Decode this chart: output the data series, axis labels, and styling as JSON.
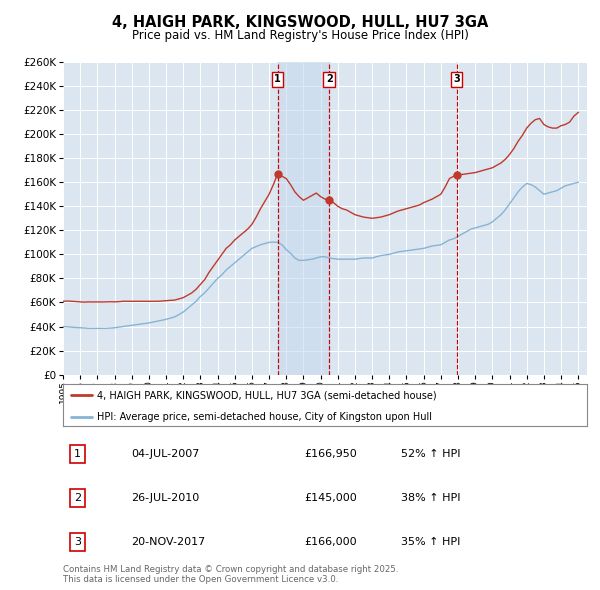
{
  "title": "4, HAIGH PARK, KINGSWOOD, HULL, HU7 3GA",
  "subtitle": "Price paid vs. HM Land Registry's House Price Index (HPI)",
  "title_fontsize": 10.5,
  "subtitle_fontsize": 8.5,
  "background_color": "#ffffff",
  "plot_bg_color": "#dce6f1",
  "shaded_color": "#c5d8ec",
  "grid_color": "#ffffff",
  "red_color": "#c0392b",
  "blue_color": "#85b4d4",
  "dashed_color": "#cc0000",
  "ylim": [
    0,
    260000
  ],
  "yticks": [
    0,
    20000,
    40000,
    60000,
    80000,
    100000,
    120000,
    140000,
    160000,
    180000,
    200000,
    220000,
    240000,
    260000
  ],
  "xlim_start": 1995.0,
  "xlim_end": 2025.5,
  "transactions": [
    {
      "num": 1,
      "date": "04-JUL-2007",
      "price": 166950,
      "pct": "52%",
      "x_year": 2007.5
    },
    {
      "num": 2,
      "date": "26-JUL-2010",
      "price": 145000,
      "pct": "38%",
      "x_year": 2010.5
    },
    {
      "num": 3,
      "date": "20-NOV-2017",
      "price": 166000,
      "pct": "35%",
      "x_year": 2017.917
    }
  ],
  "legend_red_label": "4, HAIGH PARK, KINGSWOOD, HULL, HU7 3GA (semi-detached house)",
  "legend_blue_label": "HPI: Average price, semi-detached house, City of Kingston upon Hull",
  "footer_text": "Contains HM Land Registry data © Crown copyright and database right 2025.\nThis data is licensed under the Open Government Licence v3.0.",
  "red_series": {
    "x": [
      1995.0,
      1995.25,
      1995.5,
      1995.75,
      1996.0,
      1996.25,
      1996.5,
      1996.75,
      1997.0,
      1997.25,
      1997.5,
      1997.75,
      1998.0,
      1998.25,
      1998.5,
      1998.75,
      1999.0,
      1999.25,
      1999.5,
      1999.75,
      2000.0,
      2000.25,
      2000.5,
      2000.75,
      2001.0,
      2001.25,
      2001.5,
      2001.75,
      2002.0,
      2002.25,
      2002.5,
      2002.75,
      2003.0,
      2003.25,
      2003.5,
      2003.75,
      2004.0,
      2004.25,
      2004.5,
      2004.75,
      2005.0,
      2005.25,
      2005.5,
      2005.75,
      2006.0,
      2006.25,
      2006.5,
      2006.75,
      2007.0,
      2007.25,
      2007.5,
      2007.75,
      2008.0,
      2008.25,
      2008.5,
      2008.75,
      2009.0,
      2009.25,
      2009.5,
      2009.75,
      2010.0,
      2010.25,
      2010.5,
      2010.75,
      2011.0,
      2011.25,
      2011.5,
      2011.75,
      2012.0,
      2012.25,
      2012.5,
      2012.75,
      2013.0,
      2013.25,
      2013.5,
      2013.75,
      2014.0,
      2014.25,
      2014.5,
      2014.75,
      2015.0,
      2015.25,
      2015.5,
      2015.75,
      2016.0,
      2016.25,
      2016.5,
      2016.75,
      2017.0,
      2017.25,
      2017.5,
      2017.75,
      2018.0,
      2018.25,
      2018.5,
      2018.75,
      2019.0,
      2019.25,
      2019.5,
      2019.75,
      2020.0,
      2020.25,
      2020.5,
      2020.75,
      2021.0,
      2021.25,
      2021.5,
      2021.75,
      2022.0,
      2022.25,
      2022.5,
      2022.75,
      2023.0,
      2023.25,
      2023.5,
      2023.75,
      2024.0,
      2024.25,
      2024.5,
      2024.75,
      2025.0
    ],
    "y": [
      61000,
      61200,
      61000,
      60800,
      60500,
      60300,
      60500,
      60400,
      60500,
      60400,
      60500,
      60600,
      60500,
      60700,
      61000,
      61000,
      61000,
      61000,
      61000,
      61000,
      61000,
      61000,
      61000,
      61200,
      61500,
      61800,
      62000,
      63000,
      64000,
      66000,
      68000,
      71000,
      75000,
      79000,
      85000,
      90000,
      95000,
      100000,
      105000,
      108000,
      112000,
      115000,
      118000,
      121000,
      125000,
      131000,
      138000,
      144000,
      150000,
      158000,
      166950,
      165000,
      163000,
      158000,
      152000,
      148000,
      145000,
      147000,
      149000,
      151000,
      148000,
      146000,
      145000,
      143000,
      140000,
      138000,
      137000,
      135000,
      133000,
      132000,
      131000,
      130500,
      130000,
      130500,
      131000,
      132000,
      133000,
      134500,
      136000,
      137000,
      138000,
      139000,
      140000,
      141000,
      143000,
      144500,
      146000,
      148000,
      150000,
      156000,
      163000,
      165000,
      166000,
      166500,
      167000,
      167500,
      168000,
      169000,
      170000,
      171000,
      172000,
      174000,
      176000,
      179000,
      183000,
      188000,
      194000,
      199000,
      205000,
      209000,
      212000,
      213000,
      208000,
      206000,
      205000,
      205000,
      207000,
      208000,
      210000,
      215000,
      218000
    ]
  },
  "blue_series": {
    "x": [
      1995.0,
      1995.25,
      1995.5,
      1995.75,
      1996.0,
      1996.25,
      1996.5,
      1996.75,
      1997.0,
      1997.25,
      1997.5,
      1997.75,
      1998.0,
      1998.25,
      1998.5,
      1998.75,
      1999.0,
      1999.25,
      1999.5,
      1999.75,
      2000.0,
      2000.25,
      2000.5,
      2000.75,
      2001.0,
      2001.25,
      2001.5,
      2001.75,
      2002.0,
      2002.25,
      2002.5,
      2002.75,
      2003.0,
      2003.25,
      2003.5,
      2003.75,
      2004.0,
      2004.25,
      2004.5,
      2004.75,
      2005.0,
      2005.25,
      2005.5,
      2005.75,
      2006.0,
      2006.25,
      2006.5,
      2006.75,
      2007.0,
      2007.25,
      2007.5,
      2007.75,
      2008.0,
      2008.25,
      2008.5,
      2008.75,
      2009.0,
      2009.25,
      2009.5,
      2009.75,
      2010.0,
      2010.25,
      2010.5,
      2010.75,
      2011.0,
      2011.25,
      2011.5,
      2011.75,
      2012.0,
      2012.25,
      2012.5,
      2012.75,
      2013.0,
      2013.25,
      2013.5,
      2013.75,
      2014.0,
      2014.25,
      2014.5,
      2014.75,
      2015.0,
      2015.25,
      2015.5,
      2015.75,
      2016.0,
      2016.25,
      2016.5,
      2016.75,
      2017.0,
      2017.25,
      2017.5,
      2017.75,
      2018.0,
      2018.25,
      2018.5,
      2018.75,
      2019.0,
      2019.25,
      2019.5,
      2019.75,
      2020.0,
      2020.25,
      2020.5,
      2020.75,
      2021.0,
      2021.25,
      2021.5,
      2021.75,
      2022.0,
      2022.25,
      2022.5,
      2022.75,
      2023.0,
      2023.25,
      2023.5,
      2023.75,
      2024.0,
      2024.25,
      2024.5,
      2024.75,
      2025.0
    ],
    "y": [
      40000,
      39800,
      39500,
      39200,
      39000,
      38800,
      38500,
      38500,
      38500,
      38500,
      38500,
      38700,
      39000,
      39500,
      40000,
      40500,
      41000,
      41500,
      42000,
      42500,
      43000,
      43700,
      44500,
      45200,
      46000,
      47000,
      48000,
      50000,
      52000,
      55000,
      58000,
      61000,
      65000,
      68000,
      72000,
      76000,
      80000,
      83000,
      87000,
      90000,
      93000,
      96000,
      99000,
      102000,
      105000,
      106500,
      108000,
      109000,
      110000,
      110200,
      110000,
      108000,
      104000,
      101000,
      97000,
      95000,
      95000,
      95500,
      96000,
      97000,
      98000,
      98000,
      97000,
      96500,
      96000,
      96000,
      96000,
      96000,
      96000,
      96500,
      97000,
      97000,
      97000,
      98000,
      99000,
      99500,
      100000,
      101000,
      102000,
      102500,
      103000,
      103500,
      104000,
      104500,
      105000,
      106000,
      107000,
      107500,
      108000,
      110000,
      112000,
      113000,
      115000,
      117000,
      119000,
      121000,
      122000,
      123000,
      124000,
      125000,
      127000,
      130000,
      133000,
      137000,
      142000,
      147000,
      152000,
      156000,
      159000,
      158000,
      156000,
      153000,
      150000,
      151000,
      152000,
      153000,
      155000,
      157000,
      158000,
      159000,
      160000
    ]
  }
}
